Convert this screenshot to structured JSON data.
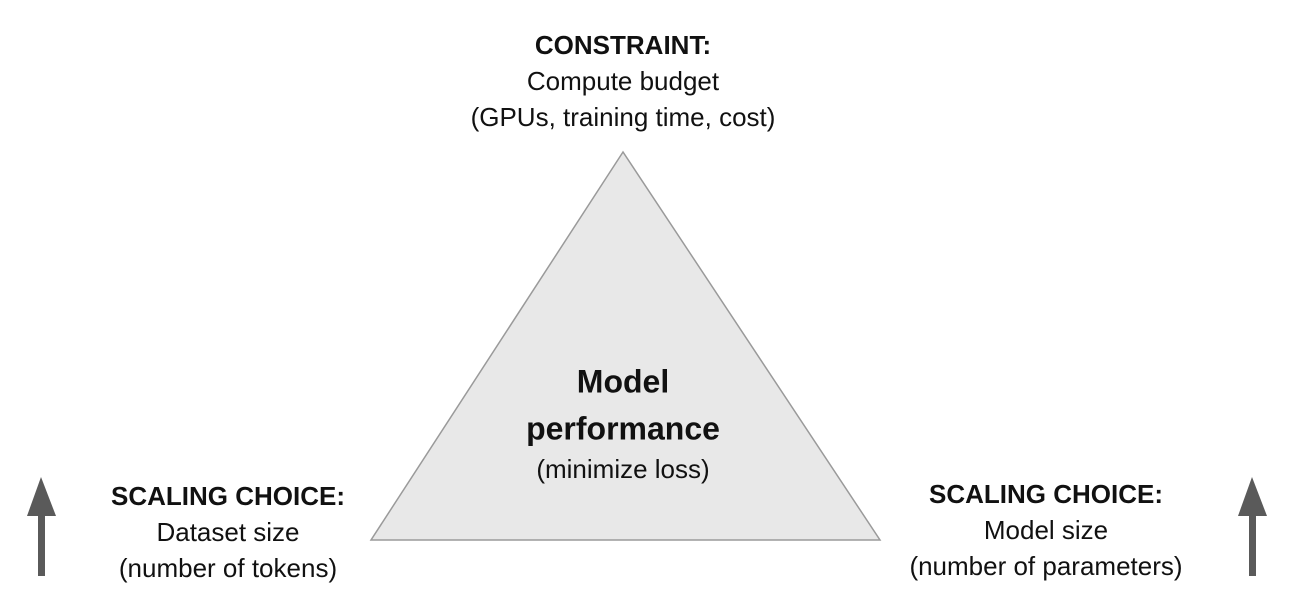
{
  "top": {
    "heading": "CONSTRAINT:",
    "line1": "Compute budget",
    "line2": "(GPUs, training time, cost)"
  },
  "center": {
    "line1": "Model",
    "line2": "performance",
    "line3": "(minimize loss)"
  },
  "left": {
    "heading": "SCALING CHOICE:",
    "line1": "Dataset size",
    "line2": "(number of tokens)"
  },
  "right": {
    "heading": "SCALING CHOICE:",
    "line1": "Model size",
    "line2": "(number of parameters)"
  }
}
